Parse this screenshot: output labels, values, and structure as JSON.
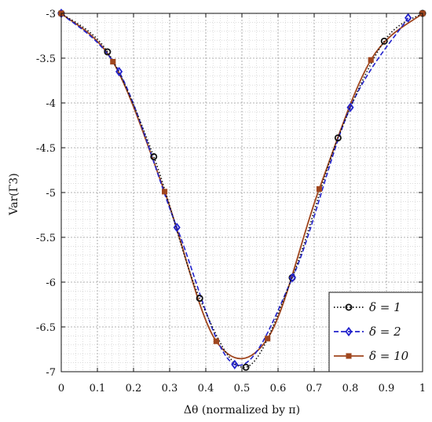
{
  "chart_data": {
    "type": "line",
    "xlabel": "Δθ (normalized by π)",
    "ylabel": "Var(Γ3)",
    "xlim": [
      0,
      1
    ],
    "ylim": [
      -7,
      -3
    ],
    "grid": true,
    "legend_position": "bottom-right",
    "x_ticks": [
      "0",
      "0.1",
      "0.2",
      "0.3",
      "0.4",
      "0.5",
      "0.6",
      "0.7",
      "0.8",
      "0.9",
      "1"
    ],
    "y_ticks": [
      "-3",
      "-3.5",
      "-4",
      "-4.5",
      "-5",
      "-5.5",
      "-6",
      "-6.5",
      "-7"
    ],
    "series": [
      {
        "name": "δ = 1",
        "line": "dotted",
        "marker": "circle",
        "color": "#111111",
        "x": [
          0,
          0.128,
          0.256,
          0.383,
          0.511,
          0.639,
          0.766,
          0.894,
          1.0
        ],
        "y": [
          -3.0,
          -3.43,
          -4.6,
          -6.18,
          -6.95,
          -5.95,
          -4.39,
          -3.31,
          -3.0
        ]
      },
      {
        "name": "δ = 2",
        "line": "dashed",
        "marker": "diamond",
        "color": "#2222cc",
        "x": [
          0,
          0.16,
          0.32,
          0.48,
          0.64,
          0.8,
          0.96
        ],
        "y": [
          -3.0,
          -3.65,
          -5.39,
          -6.92,
          -5.95,
          -4.05,
          -3.05
        ]
      },
      {
        "name": "δ = 10",
        "line": "solid",
        "marker": "square",
        "color": "#a0461e",
        "x": [
          0,
          0.143,
          0.286,
          0.429,
          0.571,
          0.714,
          0.857,
          1.0
        ],
        "y": [
          -3.0,
          -3.54,
          -4.99,
          -6.66,
          -6.63,
          -4.96,
          -3.52,
          -3.0
        ]
      }
    ]
  }
}
